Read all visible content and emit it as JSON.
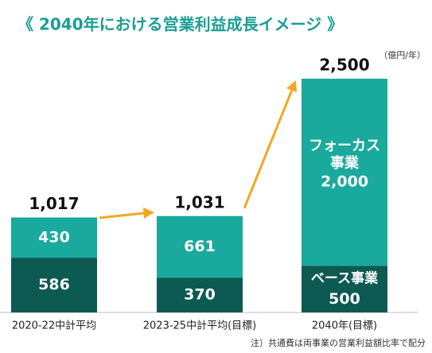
{
  "chart_data": {
    "type": "stacked-bar",
    "title": "《 2040年における営業利益成長イメージ 》",
    "unit": "（億円/年）",
    "note": "注）共通費は両事業の営業利益額比率で配分",
    "categories": [
      "2020-22中計平均",
      "2023-25中計平均(目標)",
      "2040年(目標)"
    ],
    "series": [
      {
        "name": "フォーカス事業",
        "color": "#1aa99d",
        "values": [
          430,
          661,
          2000
        ],
        "value_labels": [
          "430",
          "661",
          "2,000"
        ]
      },
      {
        "name": "ベース事業",
        "color": "#0c5a52",
        "values": [
          586,
          370,
          500
        ]
      }
    ],
    "totals": {
      "values": [
        1017,
        1031,
        2500
      ],
      "value_labels": [
        "1,017",
        "1,031",
        "2,500"
      ]
    }
  }
}
